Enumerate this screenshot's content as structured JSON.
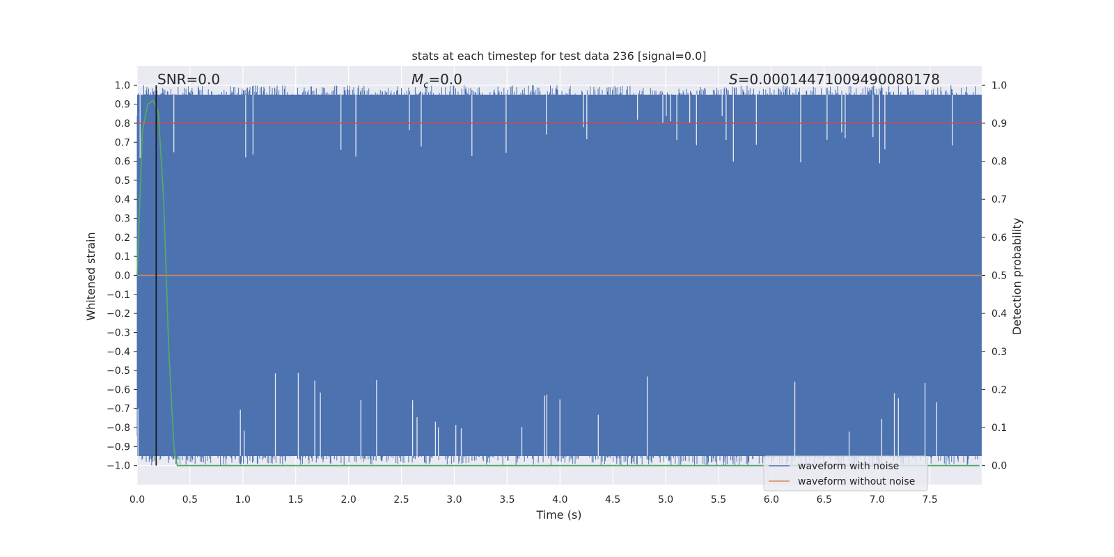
{
  "chart_data": {
    "type": "line",
    "title": "stats at each timestep for test data 236 [signal=0.0]",
    "xlabel": "Time (s)",
    "ylabel": "Whitened strain",
    "y2label": "Detection probability",
    "xlim": [
      0.0,
      7.99
    ],
    "ylim": [
      -1.1,
      1.1
    ],
    "y2lim": [
      -0.05,
      1.05
    ],
    "xticks": [
      0.0,
      0.5,
      1.0,
      1.5,
      2.0,
      2.5,
      3.0,
      3.5,
      4.0,
      4.5,
      5.0,
      5.5,
      6.0,
      6.5,
      7.0,
      7.5
    ],
    "xtick_labels": [
      "0.0",
      "0.5",
      "1.0",
      "1.5",
      "2.0",
      "2.5",
      "3.0",
      "3.5",
      "4.0",
      "4.5",
      "5.0",
      "5.5",
      "6.0",
      "6.5",
      "7.0",
      "7.5"
    ],
    "yticks": [
      1.0,
      0.9,
      0.8,
      0.7,
      0.6,
      0.5,
      0.4,
      0.3,
      0.2,
      0.1,
      0.0,
      -0.1,
      -0.2,
      -0.3,
      -0.4,
      -0.5,
      -0.6,
      -0.7,
      -0.8,
      -0.9,
      -1.0
    ],
    "ytick_labels": [
      "1.0",
      "0.9",
      "0.8",
      "0.7",
      "0.6",
      "0.5",
      "0.4",
      "0.3",
      "0.2",
      "0.1",
      "0.0",
      "−0.1",
      "−0.2",
      "−0.3",
      "−0.4",
      "−0.5",
      "−0.6",
      "−0.7",
      "−0.8",
      "−0.9",
      "−1.0"
    ],
    "y2ticks": [
      1.0,
      0.9,
      0.8,
      0.7,
      0.6,
      0.5,
      0.4,
      0.3,
      0.2,
      0.1,
      0.0
    ],
    "y2tick_labels": [
      "1.0",
      "0.9",
      "0.8",
      "0.7",
      "0.6",
      "0.5",
      "0.4",
      "0.3",
      "0.2",
      "0.1",
      "0.0"
    ],
    "grid": true,
    "annotations": {
      "snr": "SNR=0.0",
      "mc_symbol": "M",
      "mc_subscript": "c",
      "mc_value": "=0.0",
      "s_symbol": "S",
      "s_value": "=0.0001447100949008017​8"
    },
    "legend": {
      "placement": "bottom-right",
      "entries": [
        "waveform with noise",
        "waveform without noise"
      ]
    },
    "series": [
      {
        "name": "waveform with noise",
        "color": "#4c72b0",
        "description": "dense noise filling roughly -0.95 to 0.95 with excursions to ±1.0",
        "y_range": [
          -1.0,
          1.0
        ]
      },
      {
        "name": "waveform without noise",
        "color": "#dd8452",
        "y": 0.0
      },
      {
        "name": "threshold",
        "color": "#c44e52",
        "y2": 0.9
      },
      {
        "name": "detection probability",
        "color": "#55a868",
        "x": [
          0.0,
          0.05,
          0.1,
          0.15,
          0.2,
          0.25,
          0.3,
          0.35,
          0.38,
          0.4,
          7.97
        ],
        "y2": [
          0.5,
          0.88,
          0.95,
          0.96,
          0.93,
          0.7,
          0.3,
          0.04,
          0.0,
          0.0,
          0.0
        ]
      },
      {
        "name": "marker",
        "color": "#1a1a1a",
        "x": 0.18
      }
    ]
  },
  "colors": {
    "background": "#eaeaf2",
    "grid": "#ffffff",
    "noise": "#4c72b0",
    "clean": "#dd8452",
    "threshold": "#c44e52",
    "probability": "#55a868",
    "marker": "#1a1a1a"
  }
}
